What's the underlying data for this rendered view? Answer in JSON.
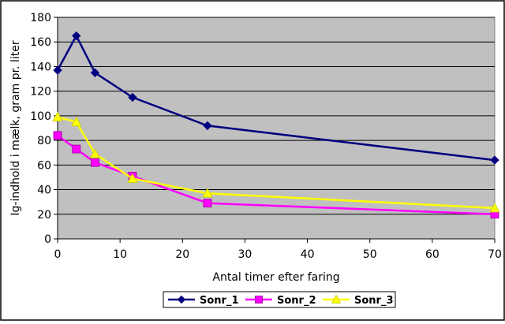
{
  "chart_data": {
    "type": "line",
    "title": "",
    "xlabel": "Antal timer efter faring",
    "ylabel": "Ig-indhold i mælk, gram pr. liter",
    "xlim": [
      0,
      70
    ],
    "ylim": [
      0,
      180
    ],
    "x_ticks": [
      "0",
      "10",
      "20",
      "30",
      "40",
      "50",
      "60",
      "70"
    ],
    "y_ticks": [
      "0",
      "20",
      "40",
      "60",
      "80",
      "100",
      "120",
      "140",
      "160",
      "180"
    ],
    "grid": "horizontal",
    "plot_background": "#c0c0c0",
    "legend_position": "bottom",
    "series": [
      {
        "name": "Sonr_1",
        "color": "#000080",
        "marker": "diamond",
        "points": [
          [
            0,
            137
          ],
          [
            3,
            165
          ],
          [
            6,
            135
          ],
          [
            12,
            115
          ],
          [
            24,
            92
          ],
          [
            70,
            64
          ]
        ]
      },
      {
        "name": "Sonr_2",
        "color": "#ff00ff",
        "marker": "square",
        "points": [
          [
            0,
            84
          ],
          [
            3,
            73
          ],
          [
            6,
            62
          ],
          [
            12,
            51
          ],
          [
            24,
            29
          ],
          [
            70,
            20
          ]
        ]
      },
      {
        "name": "Sonr_3",
        "color": "#ffff00",
        "marker": "triangle",
        "points": [
          [
            0,
            99
          ],
          [
            3,
            95
          ],
          [
            6,
            69
          ],
          [
            12,
            49
          ],
          [
            24,
            37
          ],
          [
            70,
            25
          ]
        ]
      }
    ]
  }
}
